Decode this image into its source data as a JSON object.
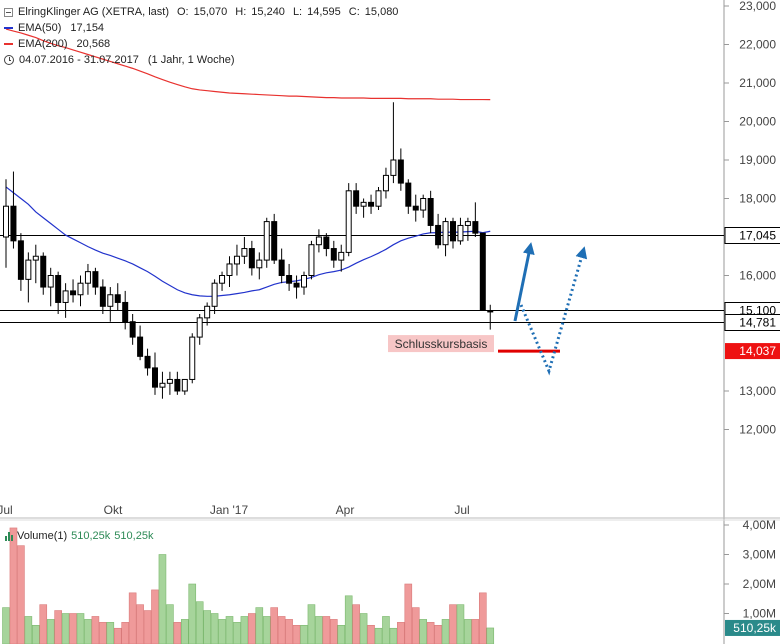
{
  "legend": {
    "title": "ElringKlinger AG (XETRA, last)",
    "open_label": "O:",
    "open": "15,070",
    "high_label": "H:",
    "high": "15,240",
    "low_label": "L:",
    "low": "14,595",
    "close_label": "C:",
    "close": "15,080",
    "ema50_label": "EMA(50)",
    "ema50_value": "17,154",
    "ema200_label": "EMA(200)",
    "ema200_value": "20,568",
    "period": "04.07.2016 - 31.07.2017",
    "period_note": "(1 Jahr, 1 Woche)"
  },
  "volume_legend": {
    "label": "Volume(1)",
    "value1": "510,25k",
    "value2": "510,25k"
  },
  "colors": {
    "ema50": "#2233cc",
    "ema200": "#e8322f",
    "up_vol": "#a6d49b",
    "down_vol": "#ef9a9a",
    "arrow": "#1f6fb5",
    "support_red": "#e00000",
    "badge_red": "#ee1111"
  },
  "chart_data": {
    "type": "candlestick",
    "price_axis": {
      "ticks": [
        "23,000",
        "22,000",
        "21,000",
        "20,000",
        "19,000",
        "18,000",
        "16,000",
        "13,000",
        "12,000"
      ],
      "tick_values": [
        23000,
        22000,
        21000,
        20000,
        19000,
        18000,
        16000,
        13000,
        12000
      ]
    },
    "x_labels": [
      "Jul",
      "Okt",
      "Jan '17",
      "Apr",
      "Jul"
    ],
    "hlines": [
      {
        "value": 17045,
        "label": "17,045"
      },
      {
        "value": 15100,
        "label": "15,100"
      },
      {
        "value": 14781,
        "label": "14,781"
      }
    ],
    "support": {
      "value": 14037,
      "label": "14,037",
      "annotation": "Schlusskursbasis"
    },
    "candles": [
      [
        17.0,
        18.5,
        16.2,
        17.8
      ],
      [
        17.8,
        18.7,
        16.7,
        16.9
      ],
      [
        16.9,
        17.1,
        15.6,
        15.9
      ],
      [
        15.9,
        16.6,
        15.3,
        16.4
      ],
      [
        16.4,
        16.8,
        15.8,
        16.5
      ],
      [
        16.5,
        16.6,
        15.5,
        15.7
      ],
      [
        15.7,
        16.2,
        15.2,
        16.0
      ],
      [
        16.0,
        16.1,
        15.0,
        15.3
      ],
      [
        15.3,
        15.8,
        14.9,
        15.6
      ],
      [
        15.6,
        15.9,
        15.3,
        15.5
      ],
      [
        15.5,
        16.0,
        15.2,
        15.8
      ],
      [
        15.8,
        16.3,
        15.5,
        16.1
      ],
      [
        16.1,
        16.2,
        15.5,
        15.7
      ],
      [
        15.7,
        15.9,
        15.0,
        15.2
      ],
      [
        15.2,
        15.7,
        14.8,
        15.5
      ],
      [
        15.5,
        15.8,
        15.1,
        15.3
      ],
      [
        15.3,
        15.6,
        14.6,
        14.8
      ],
      [
        14.8,
        15.0,
        14.2,
        14.4
      ],
      [
        14.4,
        14.7,
        13.8,
        13.9
      ],
      [
        13.9,
        14.1,
        13.4,
        13.6
      ],
      [
        13.6,
        14.0,
        12.9,
        13.1
      ],
      [
        13.1,
        13.5,
        12.8,
        13.2
      ],
      [
        13.2,
        13.5,
        12.9,
        13.3
      ],
      [
        13.3,
        13.5,
        12.9,
        13.0
      ],
      [
        13.0,
        13.3,
        12.9,
        13.3
      ],
      [
        13.3,
        14.5,
        13.2,
        14.4
      ],
      [
        14.4,
        15.0,
        14.2,
        14.9
      ],
      [
        14.9,
        15.3,
        14.7,
        15.2
      ],
      [
        15.2,
        15.9,
        15.0,
        15.8
      ],
      [
        15.8,
        16.1,
        15.6,
        16.0
      ],
      [
        16.0,
        16.5,
        15.7,
        16.3
      ],
      [
        16.3,
        16.8,
        16.0,
        16.5
      ],
      [
        16.5,
        17.0,
        16.3,
        16.7
      ],
      [
        16.7,
        16.9,
        16.0,
        16.2
      ],
      [
        16.2,
        16.6,
        15.9,
        16.4
      ],
      [
        16.4,
        17.5,
        16.2,
        17.4
      ],
      [
        17.4,
        17.6,
        16.3,
        16.4
      ],
      [
        16.4,
        16.7,
        15.8,
        16.0
      ],
      [
        16.0,
        16.3,
        15.6,
        15.8
      ],
      [
        15.8,
        16.0,
        15.4,
        15.7
      ],
      [
        15.7,
        16.1,
        15.5,
        16.0
      ],
      [
        16.0,
        16.9,
        15.9,
        16.8
      ],
      [
        16.8,
        17.2,
        16.6,
        17.0
      ],
      [
        17.0,
        17.1,
        16.5,
        16.7
      ],
      [
        16.7,
        16.9,
        16.2,
        16.4
      ],
      [
        16.4,
        16.8,
        16.1,
        16.6
      ],
      [
        16.6,
        18.4,
        16.5,
        18.2
      ],
      [
        18.2,
        18.4,
        17.6,
        17.8
      ],
      [
        17.8,
        18.0,
        17.5,
        17.9
      ],
      [
        17.9,
        18.1,
        17.6,
        17.8
      ],
      [
        17.8,
        18.3,
        17.7,
        18.2
      ],
      [
        18.2,
        18.8,
        18.0,
        18.6
      ],
      [
        18.6,
        20.5,
        18.4,
        19.0
      ],
      [
        19.0,
        19.3,
        18.2,
        18.4
      ],
      [
        18.4,
        18.5,
        17.6,
        17.8
      ],
      [
        17.8,
        18.1,
        17.4,
        17.7
      ],
      [
        17.7,
        18.1,
        17.5,
        18.0
      ],
      [
        18.0,
        18.2,
        17.1,
        17.3
      ],
      [
        17.3,
        17.6,
        16.7,
        16.8
      ],
      [
        16.8,
        17.5,
        16.5,
        17.4
      ],
      [
        17.4,
        17.5,
        16.7,
        16.9
      ],
      [
        16.9,
        17.5,
        16.8,
        17.3
      ],
      [
        17.3,
        17.5,
        16.9,
        17.4
      ],
      [
        17.4,
        17.9,
        17.0,
        17.1
      ],
      [
        17.1,
        17.1,
        15.1,
        15.1
      ],
      [
        15.07,
        15.24,
        14.595,
        15.08
      ]
    ],
    "ema50": [
      18.3,
      18.15,
      18.0,
      17.85,
      17.65,
      17.5,
      17.35,
      17.2,
      17.05,
      16.95,
      16.85,
      16.75,
      16.66,
      16.58,
      16.52,
      16.45,
      16.38,
      16.3,
      16.2,
      16.1,
      15.98,
      15.85,
      15.74,
      15.63,
      15.55,
      15.5,
      15.47,
      15.46,
      15.46,
      15.48,
      15.5,
      15.53,
      15.56,
      15.6,
      15.63,
      15.7,
      15.77,
      15.82,
      15.84,
      15.86,
      15.9,
      15.95,
      16.02,
      16.07,
      16.1,
      16.14,
      16.22,
      16.32,
      16.41,
      16.49,
      16.58,
      16.68,
      16.8,
      16.9,
      16.97,
      17.02,
      17.08,
      17.11,
      17.11,
      17.13,
      17.12,
      17.13,
      17.14,
      17.15,
      17.11,
      17.15
    ],
    "ema200": [
      22.4,
      22.35,
      22.3,
      22.24,
      22.18,
      22.1,
      22.03,
      21.97,
      21.92,
      21.86,
      21.8,
      21.74,
      21.68,
      21.62,
      21.56,
      21.5,
      21.44,
      21.38,
      21.31,
      21.24,
      21.16,
      21.09,
      21.02,
      20.96,
      20.9,
      20.85,
      20.82,
      20.8,
      20.78,
      20.76,
      20.74,
      20.73,
      20.72,
      20.71,
      20.7,
      20.69,
      20.68,
      20.67,
      20.66,
      20.66,
      20.65,
      20.64,
      20.63,
      20.62,
      20.62,
      20.61,
      20.61,
      20.61,
      20.61,
      20.6,
      20.6,
      20.6,
      20.6,
      20.6,
      20.59,
      20.59,
      20.59,
      20.59,
      20.58,
      20.58,
      20.58,
      20.57,
      20.57,
      20.57,
      20.57,
      20.568
    ],
    "volume_axis": {
      "ticks": [
        "4,00M",
        "3,00M",
        "2,00M",
        "1,00M"
      ],
      "tick_values": [
        4.0,
        3.0,
        2.0,
        1.0
      ],
      "current": "510,25k"
    },
    "volumes": [
      1.2,
      3.9,
      3.3,
      0.9,
      0.6,
      1.3,
      0.8,
      1.1,
      1.0,
      1.0,
      1.0,
      0.8,
      0.9,
      0.7,
      0.7,
      0.5,
      0.7,
      1.7,
      1.3,
      1.1,
      1.8,
      3.0,
      1.3,
      0.7,
      0.8,
      2.0,
      1.4,
      1.1,
      1.0,
      0.8,
      0.9,
      0.7,
      0.9,
      1.0,
      1.2,
      0.9,
      1.2,
      0.9,
      0.8,
      0.6,
      0.6,
      1.3,
      0.9,
      0.9,
      0.8,
      0.6,
      1.6,
      1.3,
      1.0,
      0.6,
      0.5,
      0.9,
      0.5,
      0.7,
      2.0,
      1.2,
      0.8,
      0.7,
      0.6,
      0.8,
      1.3,
      1.3,
      0.8,
      0.8,
      1.7,
      0.51
    ]
  }
}
